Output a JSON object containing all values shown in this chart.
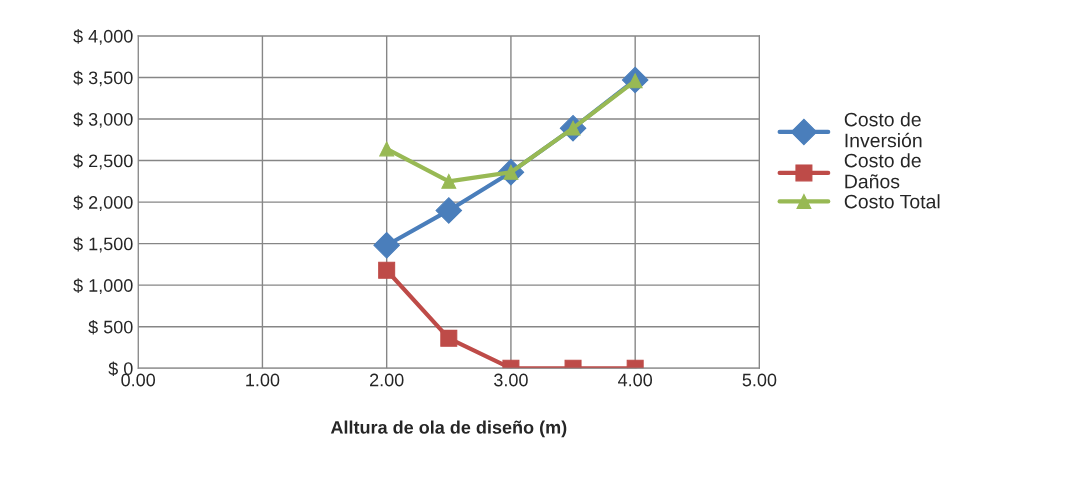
{
  "chart_data": {
    "type": "line",
    "xlabel": "Alltura de ola de diseño (m)",
    "x": [
      2.0,
      2.5,
      3.0,
      3.5,
      4.0
    ],
    "series": [
      {
        "name": "Costo de\nInversión",
        "color": "#4a7ebb",
        "marker": "diamond",
        "values": [
          1480,
          1900,
          2360,
          2890,
          3470
        ]
      },
      {
        "name": "Costo de\nDaños",
        "color": "#be4b48",
        "marker": "square",
        "values": [
          1180,
          360,
          0,
          0,
          0
        ]
      },
      {
        "name": "Costo Total",
        "color": "#98b954",
        "marker": "triangle",
        "values": [
          2640,
          2250,
          2360,
          2890,
          3460
        ]
      }
    ],
    "xlim": [
      0,
      5
    ],
    "xticks": [
      {
        "value": 0,
        "label": "0.00"
      },
      {
        "value": 1,
        "label": "1.00"
      },
      {
        "value": 2,
        "label": "2.00"
      },
      {
        "value": 3,
        "label": "3.00"
      },
      {
        "value": 4,
        "label": "4.00"
      },
      {
        "value": 5,
        "label": "5.00"
      }
    ],
    "ylim": [
      0,
      4000
    ],
    "yticks": [
      {
        "value": 0,
        "label": "$ 0"
      },
      {
        "value": 500,
        "label": "$ 500"
      },
      {
        "value": 1000,
        "label": "$ 1,000"
      },
      {
        "value": 1500,
        "label": "$ 1,500"
      },
      {
        "value": 2000,
        "label": "$ 2,000"
      },
      {
        "value": 2500,
        "label": "$ 2,500"
      },
      {
        "value": 3000,
        "label": "$ 3,000"
      },
      {
        "value": 3500,
        "label": "$ 3,500"
      },
      {
        "value": 4000,
        "label": "$ 4,000"
      }
    ],
    "grid": true,
    "legend": "right",
    "line_style": "solid"
  }
}
